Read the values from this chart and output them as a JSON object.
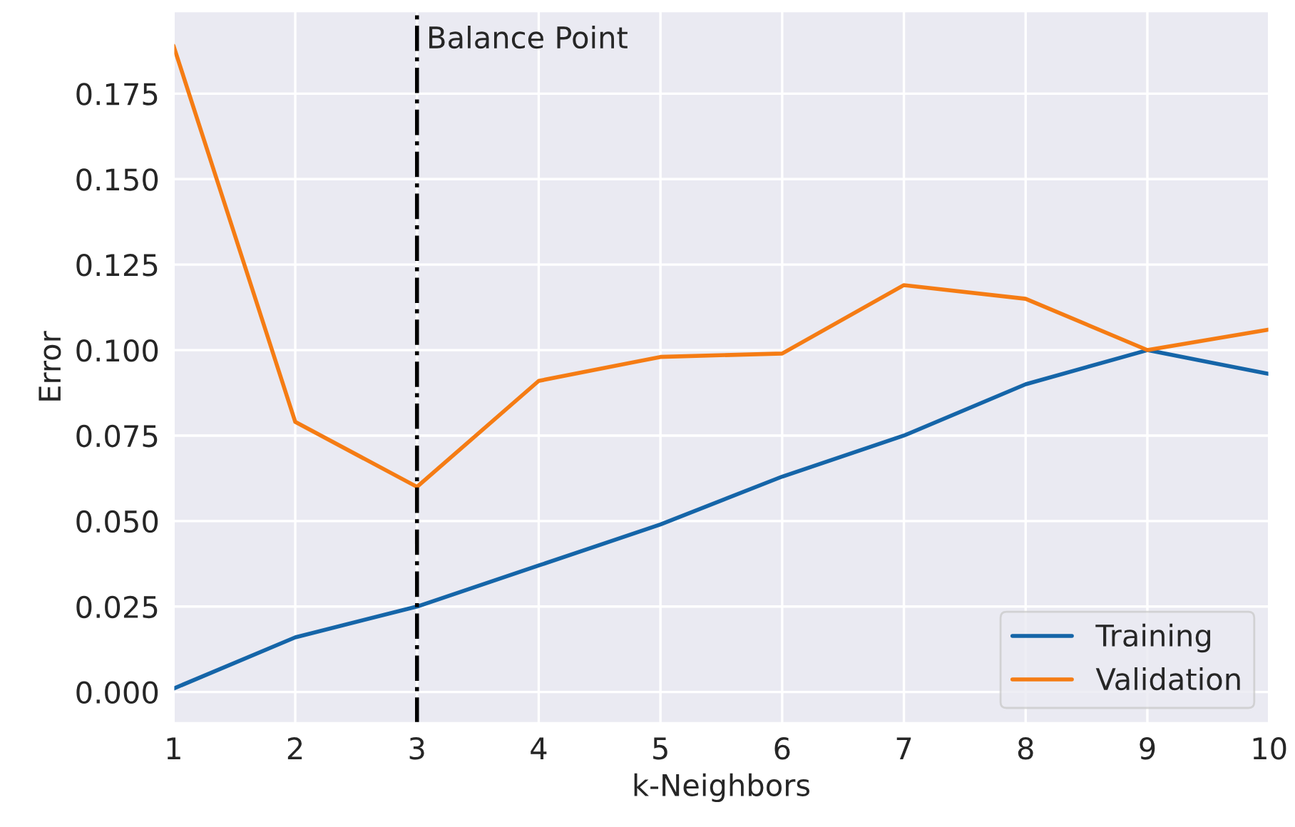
{
  "chart_data": {
    "type": "line",
    "xlabel": "k-Neighbors",
    "ylabel": "Error",
    "x": [
      1,
      2,
      3,
      4,
      5,
      6,
      7,
      8,
      9,
      10
    ],
    "series": [
      {
        "name": "Training",
        "color": "#1565a8",
        "values": [
          0.001,
          0.016,
          0.025,
          0.037,
          0.049,
          0.063,
          0.075,
          0.09,
          0.1,
          0.093
        ]
      },
      {
        "name": "Validation",
        "color": "#f57c14",
        "values": [
          0.189,
          0.079,
          0.06,
          0.091,
          0.098,
          0.099,
          0.119,
          0.115,
          0.1,
          0.106
        ]
      }
    ],
    "xlim": [
      1,
      10
    ],
    "xticks": [
      1,
      2,
      3,
      4,
      5,
      6,
      7,
      8,
      9,
      10
    ],
    "ylim": [
      -0.009,
      0.199
    ],
    "yticks": [
      {
        "value": 0,
        "label": "0.000"
      },
      {
        "value": 0.025,
        "label": "0.025"
      },
      {
        "value": 0.05,
        "label": "0.050"
      },
      {
        "value": 0.075,
        "label": "0.075"
      },
      {
        "value": 0.1,
        "label": "0.100"
      },
      {
        "value": 0.125,
        "label": "0.125"
      },
      {
        "value": 0.15,
        "label": "0.150"
      },
      {
        "value": 0.175,
        "label": "0.175"
      }
    ],
    "ref_lines": [
      {
        "axis": "x",
        "value": 3,
        "label": "Balance Point",
        "color": "#000000",
        "line_style": "dashdot"
      }
    ],
    "grid": true,
    "legend": "bottom right",
    "marker": "none",
    "line_style": "solid"
  }
}
